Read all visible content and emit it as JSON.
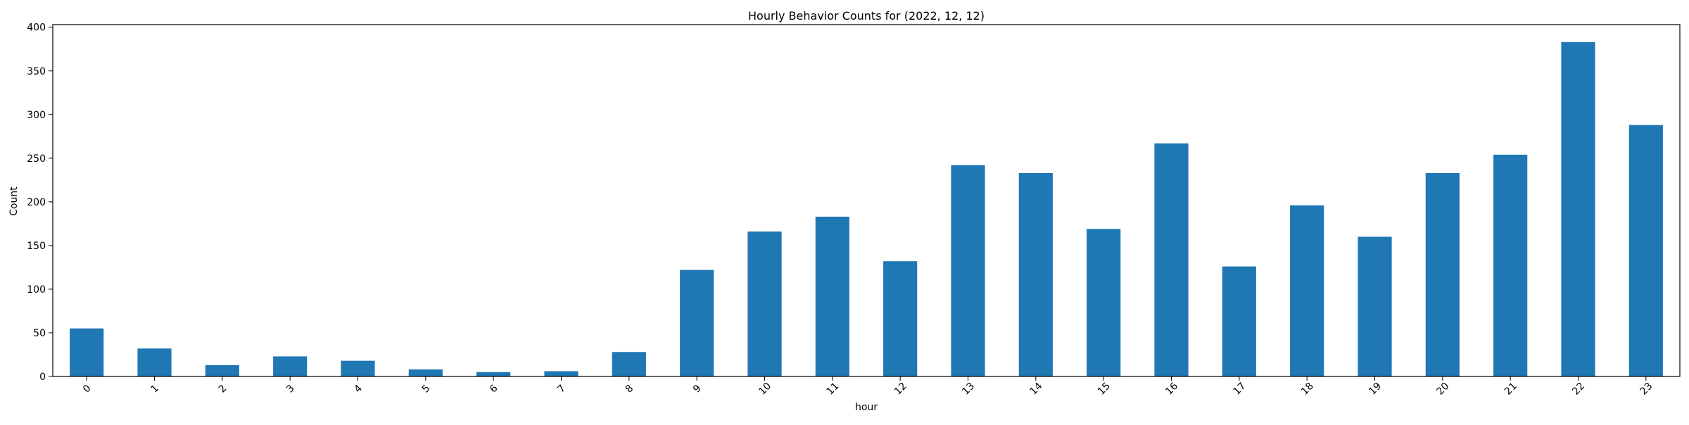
{
  "chart_data": {
    "type": "bar",
    "title": "Hourly Behavior Counts for (2022, 12, 12)",
    "xlabel": "hour",
    "ylabel": "Count",
    "categories": [
      "0",
      "1",
      "2",
      "3",
      "4",
      "5",
      "6",
      "7",
      "8",
      "9",
      "10",
      "11",
      "12",
      "13",
      "14",
      "15",
      "16",
      "17",
      "18",
      "19",
      "20",
      "21",
      "22",
      "23"
    ],
    "values": [
      55,
      32,
      13,
      23,
      18,
      8,
      5,
      6,
      28,
      122,
      166,
      183,
      132,
      242,
      233,
      169,
      267,
      126,
      196,
      160,
      233,
      254,
      383,
      288
    ],
    "ylim": [
      0,
      403
    ],
    "yticks": [
      0,
      50,
      100,
      150,
      200,
      250,
      300,
      350,
      400
    ],
    "grid": false,
    "legend": "none",
    "bar_color": "#1f77b4",
    "axis_color": "#000000"
  }
}
